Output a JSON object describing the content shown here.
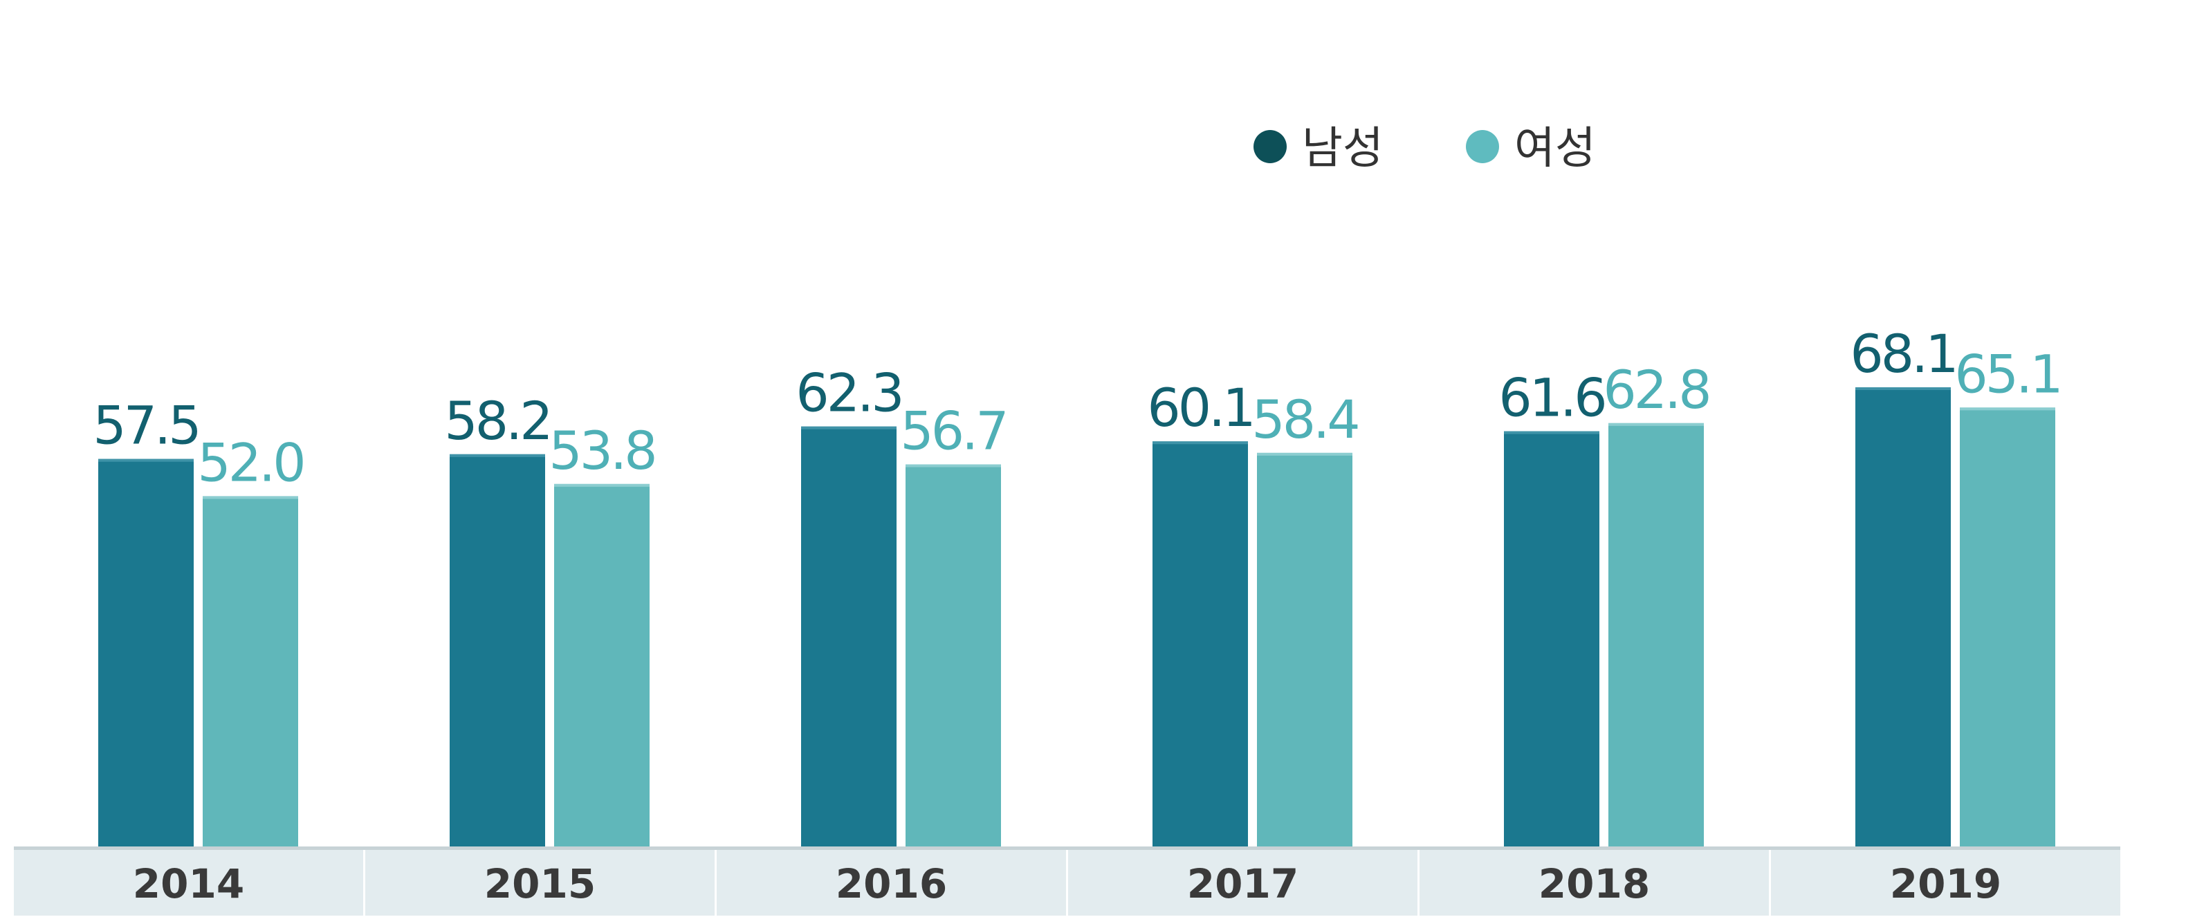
{
  "chart_data": {
    "type": "bar",
    "title": "",
    "xlabel": "",
    "ylabel": "",
    "categories": [
      "2014",
      "2015",
      "2016",
      "2017",
      "2018",
      "2019"
    ],
    "series": [
      {
        "name": "남성",
        "values": [
          57.5,
          58.2,
          62.3,
          60.1,
          61.6,
          68.1
        ],
        "color": "#1b788f",
        "label_color": "#12606f",
        "legend_color": "#0d5058"
      },
      {
        "name": "여성",
        "values": [
          52.0,
          53.8,
          56.7,
          58.4,
          62.8,
          65.1
        ],
        "color": "#60b7ba",
        "label_color": "#4fb0b6",
        "legend_color": "#5fbbbf"
      }
    ],
    "value_labels": [
      [
        "57.5",
        "58.2",
        "62.3",
        "60.1",
        "61.6",
        "68.1"
      ],
      [
        "52.0",
        "53.8",
        "56.7",
        "58.4",
        "62.8",
        "65.1"
      ]
    ],
    "ylim": [
      0,
      80
    ],
    "grid": false,
    "legend_position": "top-right",
    "axis_band_color": "#e3ecef",
    "axis_text_color": "#3a3a3a"
  }
}
